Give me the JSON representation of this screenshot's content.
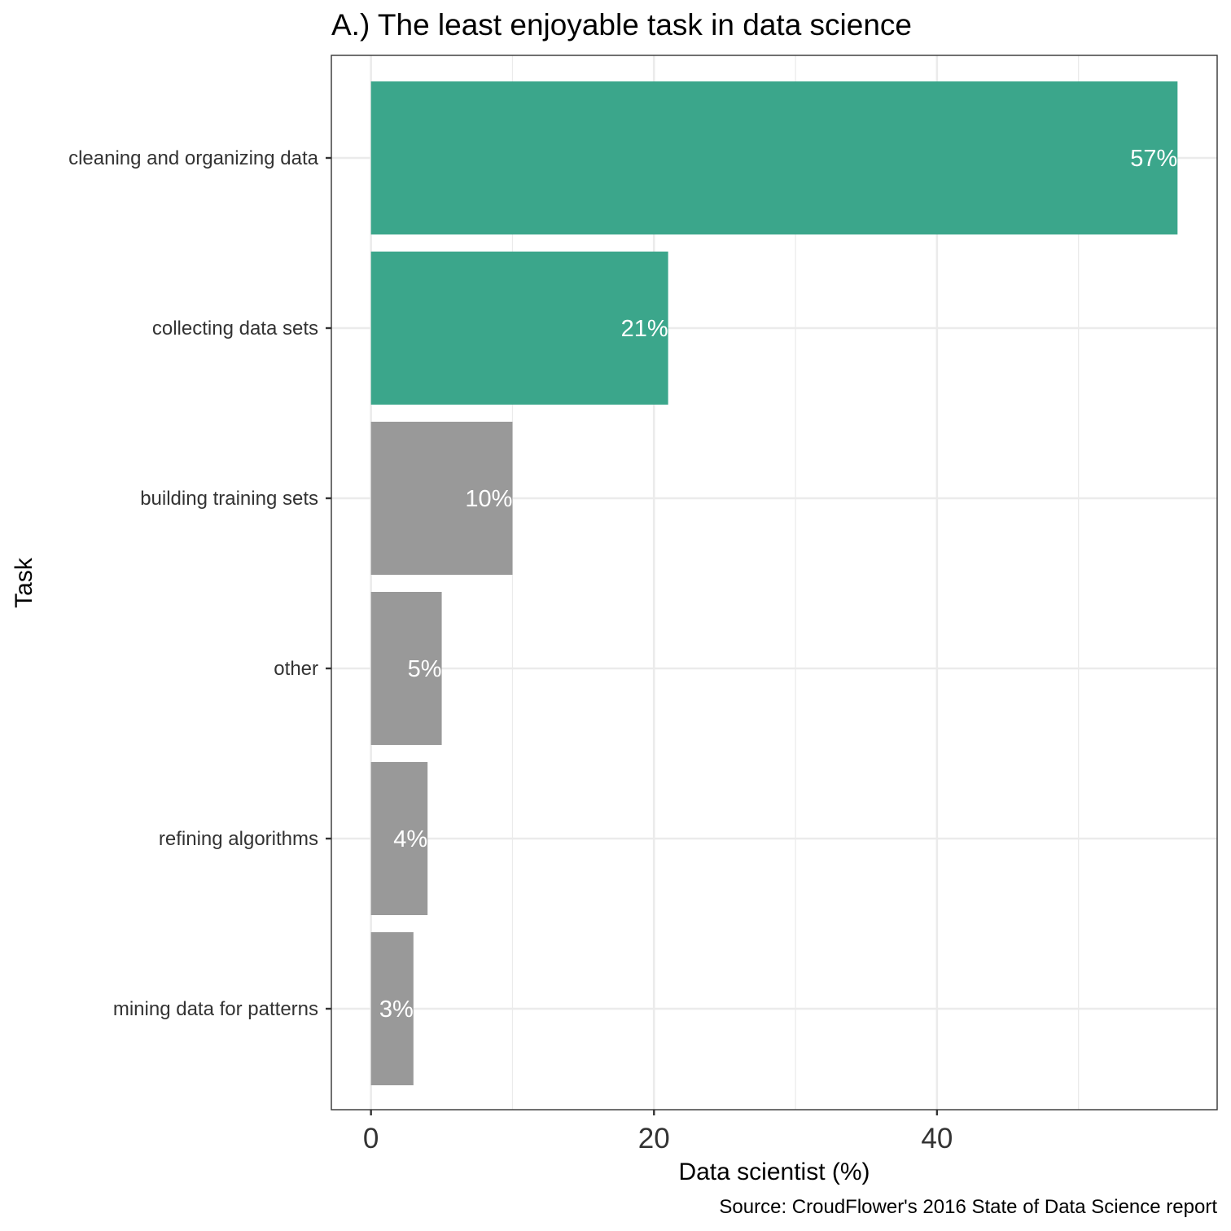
{
  "chart_data": {
    "type": "bar",
    "orientation": "horizontal",
    "title": "A.) The least enjoyable task in data science",
    "xlabel": "Data scientist (%)",
    "ylabel": "Task",
    "caption": "Source: CroudFlower's 2016 State of Data Science report",
    "categories": [
      "cleaning and organizing data",
      "collecting data sets",
      "building training sets",
      "other",
      "refining algorithms",
      "mining data for patterns"
    ],
    "values": [
      57,
      21,
      10,
      5,
      4,
      3
    ],
    "data_labels": [
      "57%",
      "21%",
      "10%",
      "5%",
      "4%",
      "3%"
    ],
    "highlighted": [
      true,
      true,
      false,
      false,
      false,
      false
    ],
    "xlim": [
      -2.8,
      59.8
    ],
    "xticks": [
      0,
      20,
      40
    ],
    "xtick_labels": [
      "0",
      "20",
      "40"
    ],
    "grid": true,
    "legend": "none",
    "colors": {
      "highlight": "#3ba68b",
      "other": "#999999",
      "grid": "#ebebeb",
      "panel_border": "#333333",
      "data_label": "#ffffff"
    }
  }
}
